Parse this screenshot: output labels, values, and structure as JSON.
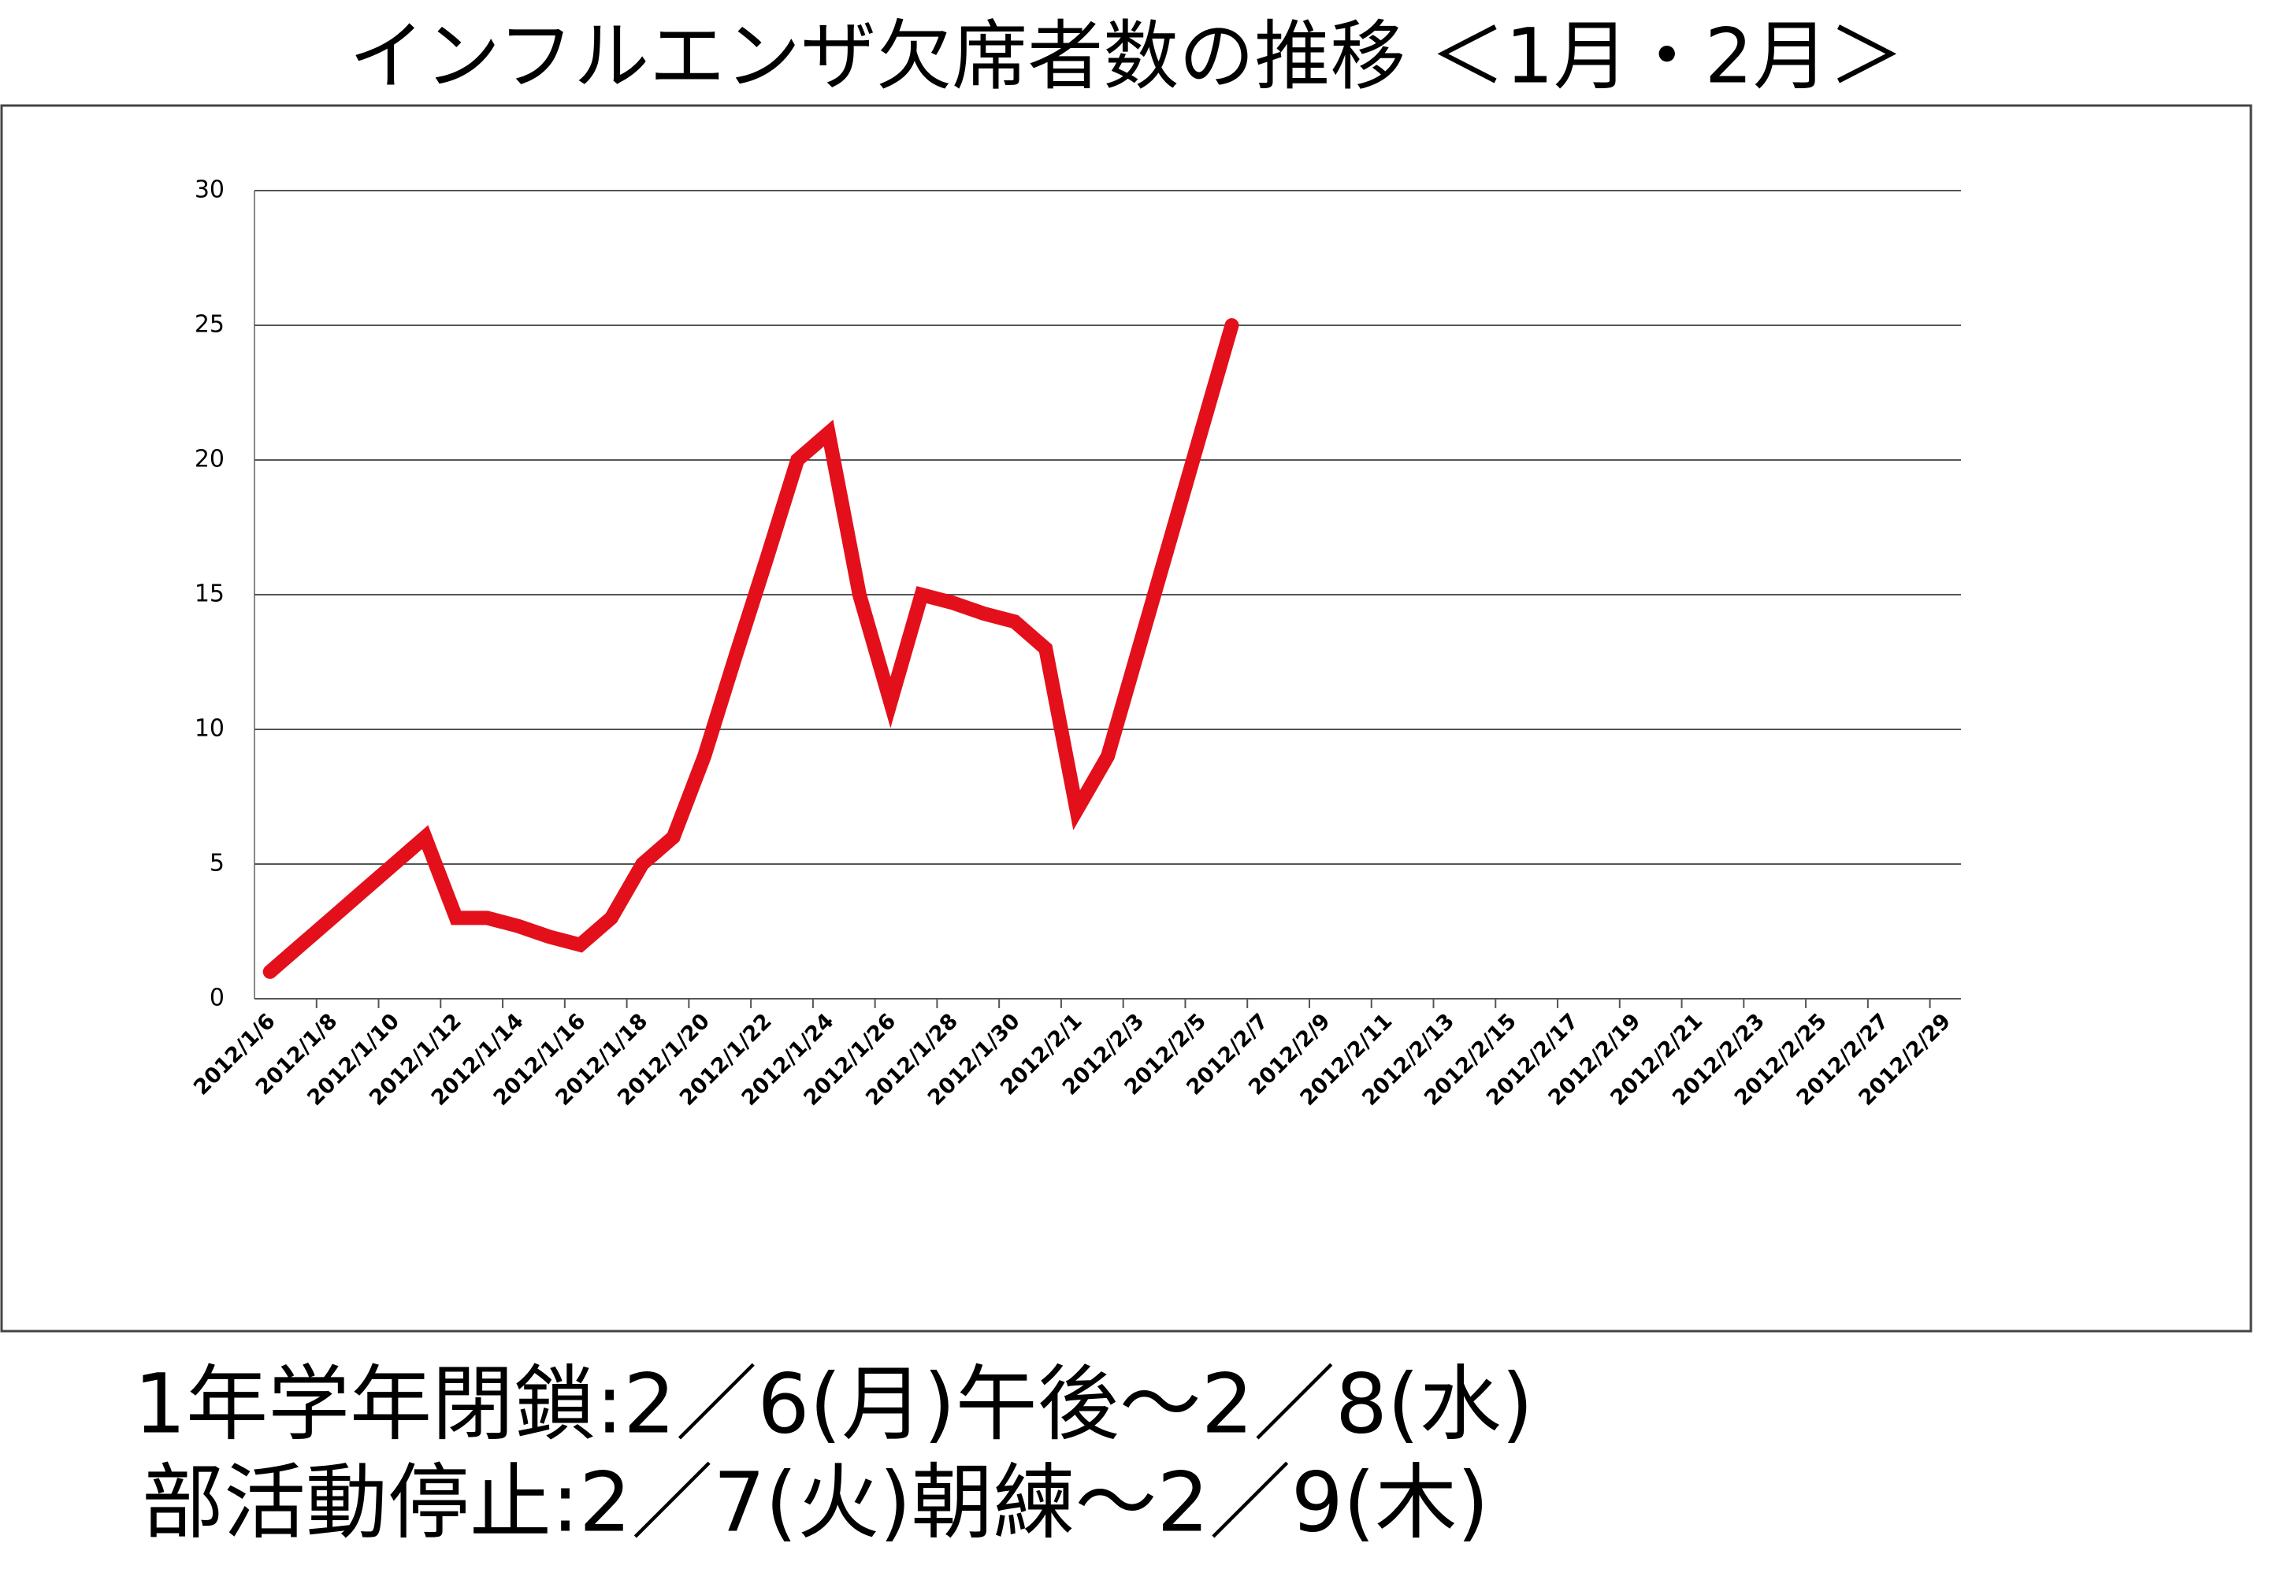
{
  "chart_data": {
    "type": "line",
    "title": "インフルエンザ欠席者数の推移 ＜1月・2月＞",
    "categories": [
      "2012/1/6",
      null,
      "2012/1/8",
      null,
      "2012/1/10",
      null,
      "2012/1/12",
      null,
      "2012/1/14",
      null,
      "2012/1/16",
      null,
      "2012/1/18",
      null,
      "2012/1/20",
      null,
      "2012/1/22",
      null,
      "2012/1/24",
      null,
      "2012/1/26",
      null,
      "2012/1/28",
      null,
      "2012/1/30",
      null,
      "2012/2/1",
      null,
      "2012/2/3",
      null,
      "2012/2/5",
      null,
      "2012/2/7",
      null,
      "2012/2/9",
      null,
      "2012/2/11",
      null,
      "2012/2/13",
      null,
      "2012/2/15",
      null,
      "2012/2/17",
      null,
      "2012/2/19",
      null,
      "2012/2/21",
      null,
      "2012/2/23",
      null,
      "2012/2/25",
      null,
      "2012/2/27",
      null,
      "2012/2/29"
    ],
    "series": [
      {
        "color": "#e3101c",
        "values": [
          1,
          2,
          3,
          4,
          5,
          6,
          3,
          3,
          2.7,
          2.3,
          2,
          3,
          5,
          6,
          9,
          12.7,
          16.3,
          20,
          21,
          15,
          11,
          15,
          14.7,
          14.3,
          14,
          13,
          7,
          9,
          13,
          17,
          21,
          25,
          null,
          null,
          null,
          null,
          null,
          null,
          null,
          null,
          null,
          null,
          null,
          null,
          null,
          null,
          null,
          null,
          null,
          null,
          null,
          null,
          null,
          null,
          null
        ]
      }
    ],
    "ylim": [
      0,
      30
    ],
    "yticks": [
      0,
      5,
      10,
      15,
      20,
      25,
      30
    ],
    "grid": true,
    "annotations": [
      "1年学年閉鎖:2／6(月)午後～2／8(水)",
      "部活動停止:2／7(火)朝練～2／9(木)"
    ]
  }
}
